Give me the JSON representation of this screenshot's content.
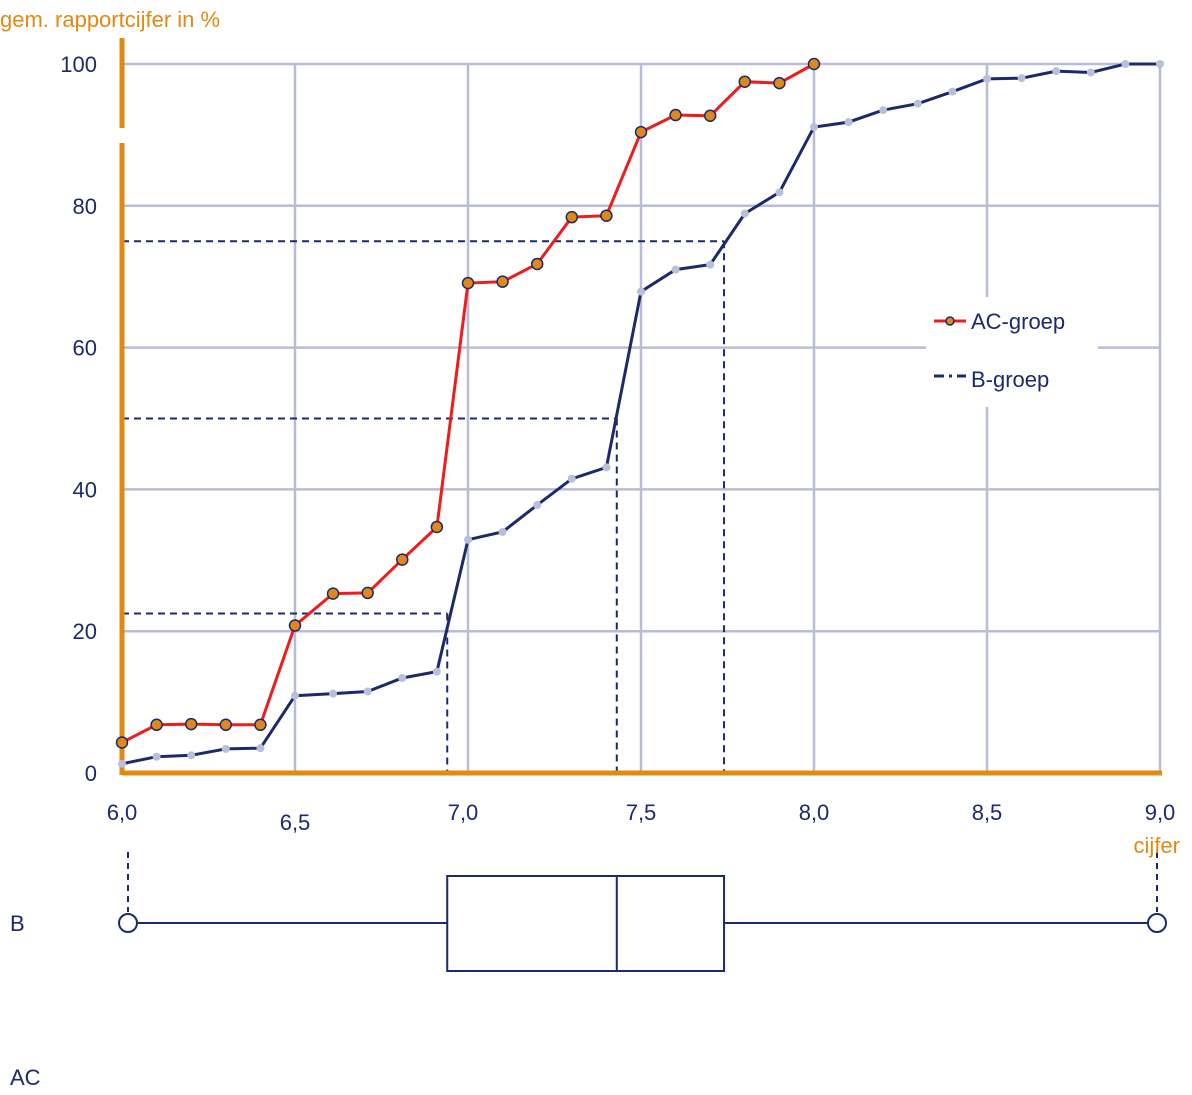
{
  "chart_data": {
    "type": "line",
    "title": "",
    "ylabel": "gem. rapportcijfer in %",
    "xlabel": "cijfer",
    "xlim": [
      6.0,
      9.0
    ],
    "ylim": [
      0,
      100
    ],
    "x_ticks": [
      {
        "value": 6.0,
        "label": "6,0"
      },
      {
        "value": 6.5,
        "label": "6,5"
      },
      {
        "value": 7.0,
        "label": "7,0"
      },
      {
        "value": 7.5,
        "label": "7,5"
      },
      {
        "value": 8.0,
        "label": "8,0"
      },
      {
        "value": 8.5,
        "label": "8,5"
      },
      {
        "value": 9.0,
        "label": "9,0"
      }
    ],
    "y_ticks": [
      {
        "value": 0,
        "label": "0"
      },
      {
        "value": 20,
        "label": "20"
      },
      {
        "value": 40,
        "label": "40"
      },
      {
        "value": 60,
        "label": "60"
      },
      {
        "value": 80,
        "label": "80"
      },
      {
        "value": 100,
        "label": "100"
      }
    ],
    "grid": true,
    "legend_position": "right",
    "series": [
      {
        "name": "AC-groep",
        "color": "#ee1c1c",
        "marker_color": "#e0891a",
        "points": [
          {
            "x": 6.0,
            "y": 4.3
          },
          {
            "x": 6.1,
            "y": 6.8
          },
          {
            "x": 6.2,
            "y": 6.9
          },
          {
            "x": 6.3,
            "y": 6.8
          },
          {
            "x": 6.4,
            "y": 6.8
          },
          {
            "x": 6.5,
            "y": 20.8
          },
          {
            "x": 6.61,
            "y": 25.3
          },
          {
            "x": 6.71,
            "y": 25.4
          },
          {
            "x": 6.81,
            "y": 30.1
          },
          {
            "x": 6.91,
            "y": 34.7
          },
          {
            "x": 7.0,
            "y": 69.1
          },
          {
            "x": 7.1,
            "y": 69.3
          },
          {
            "x": 7.2,
            "y": 71.8
          },
          {
            "x": 7.3,
            "y": 78.4
          },
          {
            "x": 7.4,
            "y": 78.6
          },
          {
            "x": 7.5,
            "y": 90.4
          },
          {
            "x": 7.6,
            "y": 92.8
          },
          {
            "x": 7.7,
            "y": 92.7
          },
          {
            "x": 7.8,
            "y": 97.5
          },
          {
            "x": 7.9,
            "y": 97.3
          },
          {
            "x": 8.0,
            "y": 100
          }
        ]
      },
      {
        "name": "B-groep",
        "color": "#1b2a6b",
        "marker_color": "#b8bfd8",
        "points": [
          {
            "x": 6.0,
            "y": 1.3
          },
          {
            "x": 6.1,
            "y": 2.3
          },
          {
            "x": 6.2,
            "y": 2.5
          },
          {
            "x": 6.3,
            "y": 3.4
          },
          {
            "x": 6.4,
            "y": 3.5
          },
          {
            "x": 6.5,
            "y": 10.9
          },
          {
            "x": 6.61,
            "y": 11.2
          },
          {
            "x": 6.71,
            "y": 11.5
          },
          {
            "x": 6.81,
            "y": 13.4
          },
          {
            "x": 6.91,
            "y": 14.3
          },
          {
            "x": 7.0,
            "y": 32.9
          },
          {
            "x": 7.1,
            "y": 34.0
          },
          {
            "x": 7.2,
            "y": 37.8
          },
          {
            "x": 7.3,
            "y": 41.5
          },
          {
            "x": 7.4,
            "y": 43.1
          },
          {
            "x": 7.5,
            "y": 67.9
          },
          {
            "x": 7.6,
            "y": 71.0
          },
          {
            "x": 7.7,
            "y": 71.7
          },
          {
            "x": 7.8,
            "y": 78.9
          },
          {
            "x": 7.9,
            "y": 81.9
          },
          {
            "x": 8.0,
            "y": 91.1
          },
          {
            "x": 8.1,
            "y": 91.8
          },
          {
            "x": 8.2,
            "y": 93.5
          },
          {
            "x": 8.3,
            "y": 94.4
          },
          {
            "x": 8.4,
            "y": 96.1
          },
          {
            "x": 8.5,
            "y": 97.9
          },
          {
            "x": 8.6,
            "y": 98.0
          },
          {
            "x": 8.7,
            "y": 99.0
          },
          {
            "x": 8.8,
            "y": 98.8
          },
          {
            "x": 8.9,
            "y": 100
          },
          {
            "x": 9.0,
            "y": 100
          }
        ]
      }
    ],
    "quartile_guides": [
      {
        "y": 22.5,
        "x": 6.94
      },
      {
        "y": 50,
        "x": 7.43
      },
      {
        "y": 75,
        "x": 7.74
      }
    ],
    "boxplots": [
      {
        "label": "B",
        "min": 6.0,
        "q1": 6.94,
        "median": 7.43,
        "q3": 7.74,
        "max": 9.0
      },
      {
        "label": "AC"
      }
    ]
  },
  "colors": {
    "axis": "#e08a12",
    "grid": "#b7bdd6",
    "text": "#1b2a6b",
    "guide": "#1b2a6b"
  }
}
